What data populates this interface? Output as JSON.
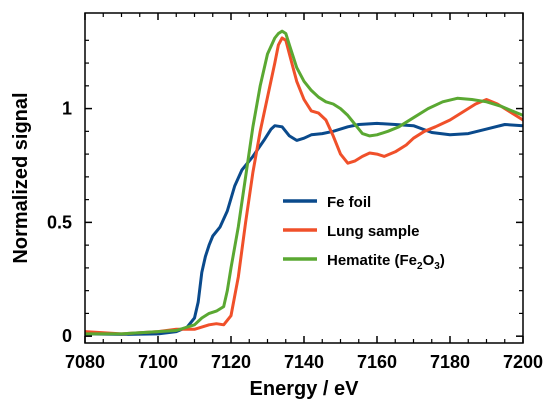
{
  "chart_data": {
    "type": "line",
    "title": "",
    "xlabel": "Energy / eV",
    "ylabel": "Normalized signal",
    "xlim": [
      7080,
      7200
    ],
    "ylim": [
      -0.03,
      1.42
    ],
    "x_ticks": [
      7080,
      7100,
      7120,
      7140,
      7160,
      7180,
      7200
    ],
    "x_tick_labels": [
      "7080",
      "7100",
      "7120",
      "7140",
      "7160",
      "7180",
      "7200"
    ],
    "y_ticks": [
      0,
      0.5,
      1
    ],
    "y_tick_labels": [
      "0",
      "0.5",
      "1"
    ],
    "grid": false,
    "legend_position": "center-right",
    "series": [
      {
        "name": "Fe foil",
        "color": "#0a4a8c",
        "points": [
          [
            7080,
            0.01
          ],
          [
            7090,
            0.008
          ],
          [
            7100,
            0.01
          ],
          [
            7105,
            0.02
          ],
          [
            7108,
            0.04
          ],
          [
            7110,
            0.08
          ],
          [
            7111,
            0.15
          ],
          [
            7112,
            0.28
          ],
          [
            7113,
            0.35
          ],
          [
            7114,
            0.4
          ],
          [
            7115,
            0.44
          ],
          [
            7117,
            0.48
          ],
          [
            7119,
            0.55
          ],
          [
            7121,
            0.66
          ],
          [
            7123,
            0.73
          ],
          [
            7126,
            0.79
          ],
          [
            7129,
            0.86
          ],
          [
            7131,
            0.91
          ],
          [
            7132,
            0.925
          ],
          [
            7134,
            0.92
          ],
          [
            7136,
            0.88
          ],
          [
            7138,
            0.86
          ],
          [
            7140,
            0.87
          ],
          [
            7142,
            0.885
          ],
          [
            7145,
            0.89
          ],
          [
            7148,
            0.9
          ],
          [
            7150,
            0.91
          ],
          [
            7152,
            0.92
          ],
          [
            7155,
            0.93
          ],
          [
            7160,
            0.935
          ],
          [
            7165,
            0.93
          ],
          [
            7170,
            0.925
          ],
          [
            7175,
            0.895
          ],
          [
            7180,
            0.885
          ],
          [
            7185,
            0.89
          ],
          [
            7190,
            0.91
          ],
          [
            7195,
            0.93
          ],
          [
            7200,
            0.925
          ]
        ]
      },
      {
        "name": "Lung sample",
        "color": "#f0502a",
        "points": [
          [
            7080,
            0.02
          ],
          [
            7090,
            0.01
          ],
          [
            7100,
            0.02
          ],
          [
            7105,
            0.03
          ],
          [
            7110,
            0.03
          ],
          [
            7112,
            0.04
          ],
          [
            7114,
            0.05
          ],
          [
            7116,
            0.055
          ],
          [
            7118,
            0.05
          ],
          [
            7120,
            0.09
          ],
          [
            7122,
            0.26
          ],
          [
            7124,
            0.5
          ],
          [
            7126,
            0.72
          ],
          [
            7128,
            0.9
          ],
          [
            7130,
            1.05
          ],
          [
            7132,
            1.2
          ],
          [
            7133,
            1.28
          ],
          [
            7134,
            1.31
          ],
          [
            7135,
            1.3
          ],
          [
            7136,
            1.24
          ],
          [
            7138,
            1.12
          ],
          [
            7140,
            1.04
          ],
          [
            7142,
            0.99
          ],
          [
            7144,
            0.98
          ],
          [
            7146,
            0.95
          ],
          [
            7148,
            0.88
          ],
          [
            7150,
            0.8
          ],
          [
            7152,
            0.76
          ],
          [
            7154,
            0.77
          ],
          [
            7156,
            0.79
          ],
          [
            7158,
            0.805
          ],
          [
            7160,
            0.8
          ],
          [
            7162,
            0.79
          ],
          [
            7165,
            0.81
          ],
          [
            7168,
            0.84
          ],
          [
            7170,
            0.87
          ],
          [
            7173,
            0.9
          ],
          [
            7176,
            0.92
          ],
          [
            7180,
            0.95
          ],
          [
            7184,
            0.99
          ],
          [
            7187,
            1.02
          ],
          [
            7190,
            1.04
          ],
          [
            7193,
            1.02
          ],
          [
            7196,
            0.99
          ],
          [
            7200,
            0.95
          ]
        ]
      },
      {
        "name": "Hematite (Fe2O3)",
        "color": "#5aa832",
        "points": [
          [
            7080,
            0.01
          ],
          [
            7090,
            0.01
          ],
          [
            7100,
            0.02
          ],
          [
            7105,
            0.025
          ],
          [
            7110,
            0.05
          ],
          [
            7112,
            0.08
          ],
          [
            7114,
            0.1
          ],
          [
            7116,
            0.11
          ],
          [
            7118,
            0.13
          ],
          [
            7119,
            0.2
          ],
          [
            7120,
            0.3
          ],
          [
            7122,
            0.48
          ],
          [
            7124,
            0.7
          ],
          [
            7126,
            0.92
          ],
          [
            7128,
            1.1
          ],
          [
            7130,
            1.24
          ],
          [
            7132,
            1.31
          ],
          [
            7133,
            1.33
          ],
          [
            7134,
            1.34
          ],
          [
            7135,
            1.33
          ],
          [
            7136,
            1.28
          ],
          [
            7138,
            1.18
          ],
          [
            7140,
            1.12
          ],
          [
            7142,
            1.08
          ],
          [
            7144,
            1.05
          ],
          [
            7146,
            1.03
          ],
          [
            7148,
            1.02
          ],
          [
            7150,
            1.0
          ],
          [
            7152,
            0.97
          ],
          [
            7154,
            0.93
          ],
          [
            7156,
            0.89
          ],
          [
            7158,
            0.88
          ],
          [
            7160,
            0.885
          ],
          [
            7163,
            0.9
          ],
          [
            7166,
            0.92
          ],
          [
            7170,
            0.96
          ],
          [
            7174,
            1.0
          ],
          [
            7178,
            1.03
          ],
          [
            7182,
            1.045
          ],
          [
            7186,
            1.04
          ],
          [
            7190,
            1.03
          ],
          [
            7194,
            1.01
          ],
          [
            7197,
            0.99
          ],
          [
            7200,
            0.97
          ]
        ]
      }
    ],
    "legend_entries": [
      {
        "label": "Fe foil",
        "color": "#0a4a8c"
      },
      {
        "label": "Lung sample",
        "color": "#f0502a"
      },
      {
        "label_main": "Hematite (Fe",
        "sub1": "2",
        "label_mid": "O",
        "sub2": "3",
        "label_end": ")",
        "color": "#5aa832"
      }
    ]
  }
}
